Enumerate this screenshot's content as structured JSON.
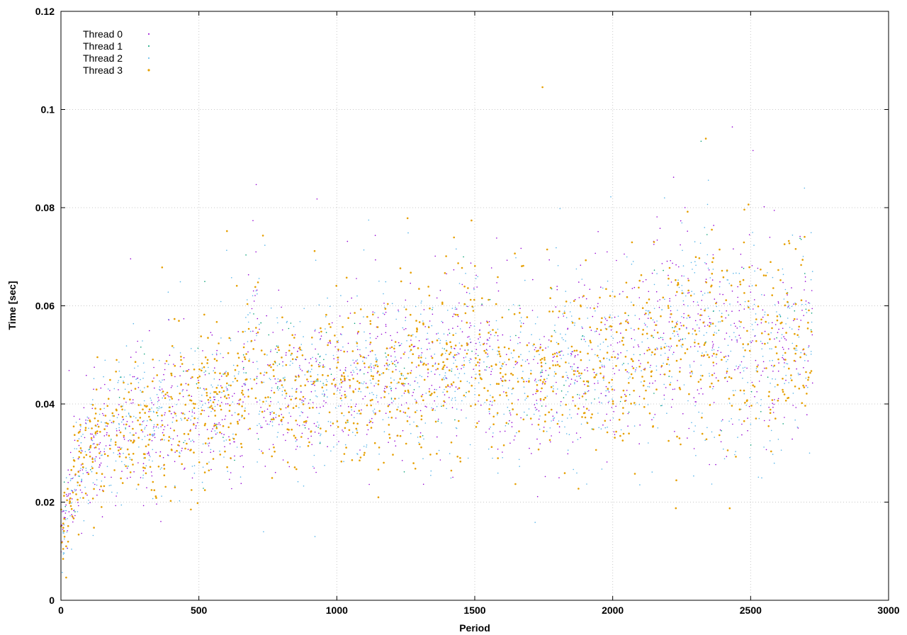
{
  "chart_data": {
    "type": "scatter",
    "title": "",
    "xlabel": "Period",
    "ylabel": "Time [sec]",
    "xlim": [
      0,
      3000
    ],
    "ylim": [
      0,
      0.12
    ],
    "x_ticks": [
      "0",
      "500",
      "1000",
      "1500",
      "2000",
      "2500",
      "3000"
    ],
    "y_ticks": [
      "0",
      "0.02",
      "0.04",
      "0.06",
      "0.08",
      "0.1",
      "0.12"
    ],
    "grid": true,
    "legend_position": "top-left",
    "series": [
      {
        "name": "Thread 0",
        "color": "#9400d3",
        "marker": "dot"
      },
      {
        "name": "Thread 1",
        "color": "#009e73",
        "marker": "dot"
      },
      {
        "name": "Thread 2",
        "color": "#56b4e9",
        "marker": "dot"
      },
      {
        "name": "Thread 3",
        "color": "#e69f00",
        "marker": "dot"
      }
    ],
    "trend": [
      {
        "x": 0,
        "y": 0.012,
        "spread": 0.004
      },
      {
        "x": 50,
        "y": 0.025,
        "spread": 0.006
      },
      {
        "x": 100,
        "y": 0.03,
        "spread": 0.006
      },
      {
        "x": 200,
        "y": 0.034,
        "spread": 0.007
      },
      {
        "x": 300,
        "y": 0.036,
        "spread": 0.008
      },
      {
        "x": 500,
        "y": 0.04,
        "spread": 0.008
      },
      {
        "x": 650,
        "y": 0.04,
        "spread": 0.008
      },
      {
        "x": 700,
        "y": 0.05,
        "spread": 0.012
      },
      {
        "x": 750,
        "y": 0.041,
        "spread": 0.008
      },
      {
        "x": 1000,
        "y": 0.044,
        "spread": 0.008
      },
      {
        "x": 1300,
        "y": 0.046,
        "spread": 0.008
      },
      {
        "x": 1500,
        "y": 0.05,
        "spread": 0.01
      },
      {
        "x": 1600,
        "y": 0.045,
        "spread": 0.009
      },
      {
        "x": 2000,
        "y": 0.048,
        "spread": 0.009
      },
      {
        "x": 2250,
        "y": 0.055,
        "spread": 0.012
      },
      {
        "x": 2500,
        "y": 0.05,
        "spread": 0.01
      },
      {
        "x": 2720,
        "y": 0.053,
        "spread": 0.011
      }
    ],
    "x_max_data": 2725,
    "points_per_thread": 1300
  }
}
